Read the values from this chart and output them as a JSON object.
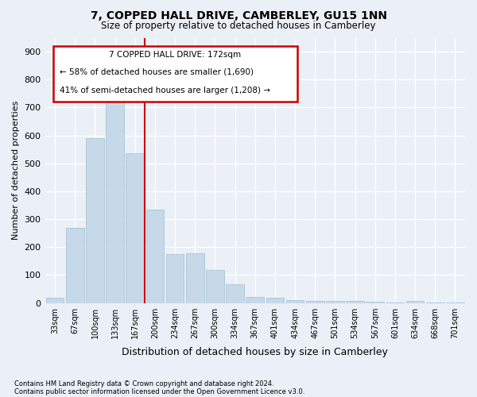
{
  "title": "7, COPPED HALL DRIVE, CAMBERLEY, GU15 1NN",
  "subtitle": "Size of property relative to detached houses in Camberley",
  "xlabel": "Distribution of detached houses by size in Camberley",
  "ylabel": "Number of detached properties",
  "footnote1": "Contains HM Land Registry data © Crown copyright and database right 2024.",
  "footnote2": "Contains public sector information licensed under the Open Government Licence v3.0.",
  "annotation_line1": "7 COPPED HALL DRIVE: 172sqm",
  "annotation_line2": "← 58% of detached houses are smaller (1,690)",
  "annotation_line3": "41% of semi-detached houses are larger (1,208) →",
  "bar_color": "#c6d9e8",
  "bar_edge_color": "#aac4d8",
  "marker_color": "#cc0000",
  "background_color": "#eaf0f6",
  "grid_color": "#ffffff",
  "categories": [
    "33sqm",
    "67sqm",
    "100sqm",
    "133sqm",
    "167sqm",
    "200sqm",
    "234sqm",
    "267sqm",
    "300sqm",
    "334sqm",
    "367sqm",
    "401sqm",
    "434sqm",
    "467sqm",
    "501sqm",
    "534sqm",
    "567sqm",
    "601sqm",
    "634sqm",
    "668sqm",
    "701sqm"
  ],
  "values": [
    20,
    270,
    590,
    730,
    535,
    335,
    175,
    178,
    117,
    67,
    22,
    20,
    10,
    8,
    7,
    7,
    5,
    1,
    8,
    1,
    1
  ],
  "marker_bin": 4,
  "ylim": [
    0,
    950
  ],
  "yticks": [
    0,
    100,
    200,
    300,
    400,
    500,
    600,
    700,
    800,
    900
  ]
}
